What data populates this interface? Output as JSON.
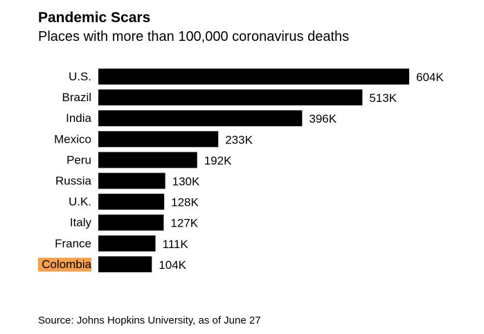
{
  "chart_data": {
    "type": "bar",
    "orientation": "horizontal",
    "title": "Pandemic Scars",
    "subtitle": "Places with more than 100,000 coronavirus deaths",
    "categories": [
      "U.S.",
      "Brazil",
      "India",
      "Mexico",
      "Peru",
      "Russia",
      "U.K.",
      "Italy",
      "France",
      "Colombia"
    ],
    "values": [
      604,
      513,
      396,
      233,
      192,
      130,
      128,
      127,
      111,
      104
    ],
    "value_labels": [
      "604K",
      "513K",
      "396K",
      "233K",
      "192K",
      "130K",
      "128K",
      "127K",
      "111K",
      "104K"
    ],
    "highlight": "Colombia",
    "highlight_color": "#f7a14a",
    "bar_color": "#000000",
    "xlim": [
      0,
      604
    ],
    "grid": false,
    "source": "Source: Johns Hopkins University, as of June 27"
  }
}
